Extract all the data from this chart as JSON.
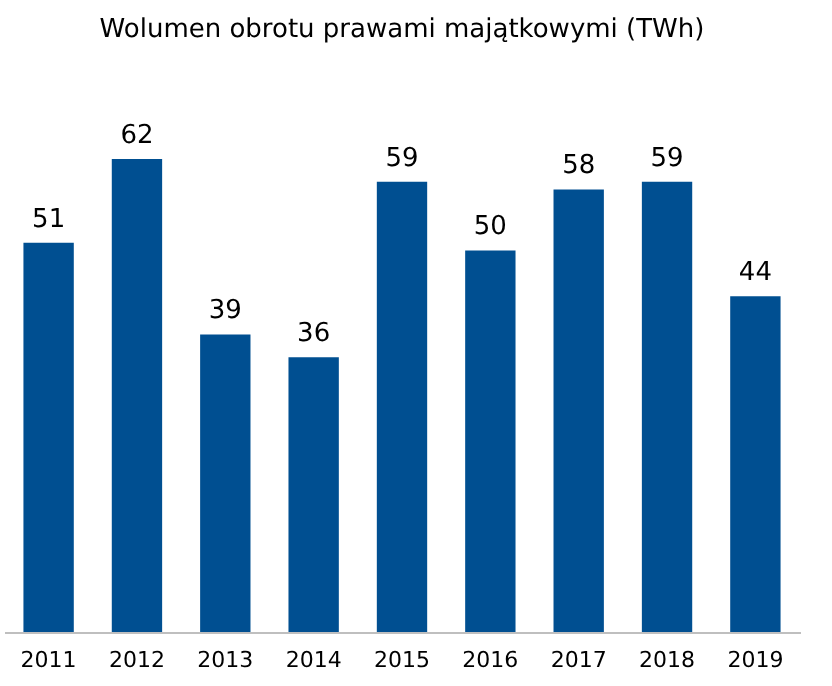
{
  "chart_data": {
    "type": "bar",
    "title": "Wolumen obrotu prawami majątkowymi (TWh)",
    "categories": [
      "2011",
      "2012",
      "2013",
      "2014",
      "2015",
      "2016",
      "2017",
      "2018",
      "2019"
    ],
    "values": [
      51,
      62,
      39,
      36,
      59,
      50,
      58,
      59,
      44
    ],
    "color": "#004f91",
    "data_labels": true,
    "tick_labels": "x"
  }
}
